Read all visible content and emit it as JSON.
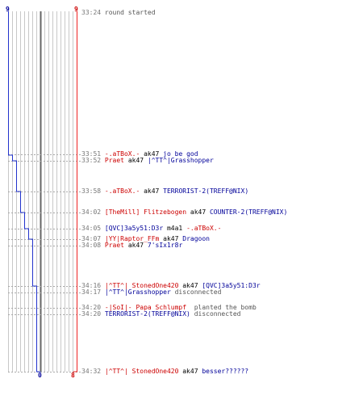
{
  "colors": {
    "red": "#cc0000",
    "blue": "#000099",
    "gray_text": "#777777",
    "msg_text": "#555555",
    "red_line": "#ee2222",
    "blue_line": "#2233cc",
    "grid": "#c8c8c8",
    "center": "#666666",
    "dash": "#aaaaaa"
  },
  "counters": {
    "blue_start": "9",
    "red_start": "9",
    "blue_end": "0",
    "red_end": "8"
  },
  "events": [
    {
      "time": "33:24",
      "parts": [
        {
          "t": "round started",
          "c": "gray"
        }
      ]
    },
    {
      "time": "33:51",
      "parts": [
        {
          "t": "-.aTBoX.-",
          "c": "red"
        },
        {
          "t": " ak47 ",
          "c": "black"
        },
        {
          "t": "jo be god",
          "c": "blue"
        }
      ]
    },
    {
      "time": "33:52",
      "parts": [
        {
          "t": "Praet",
          "c": "red"
        },
        {
          "t": " ak47 ",
          "c": "black"
        },
        {
          "t": "|^TT^|Grasshopper",
          "c": "blue"
        }
      ]
    },
    {
      "time": "33:58",
      "parts": [
        {
          "t": "-.aTBoX.-",
          "c": "red"
        },
        {
          "t": " ak47 ",
          "c": "black"
        },
        {
          "t": "TERRORIST-2(TREFF@NIX)",
          "c": "blue"
        }
      ]
    },
    {
      "time": "34:02",
      "parts": [
        {
          "t": "[TheMill] Flitzebogen",
          "c": "red"
        },
        {
          "t": " ak47 ",
          "c": "black"
        },
        {
          "t": "COUNTER-2(TREFF@NIX)",
          "c": "blue"
        }
      ]
    },
    {
      "time": "34:05",
      "parts": [
        {
          "t": "[QVC]3a5y51:D3r",
          "c": "blue"
        },
        {
          "t": " m4a1 ",
          "c": "black"
        },
        {
          "t": "-.aTBoX.-",
          "c": "red"
        }
      ]
    },
    {
      "time": "34:07",
      "parts": [
        {
          "t": "|YY|Raptor_FFm",
          "c": "red"
        },
        {
          "t": " ak47 ",
          "c": "black"
        },
        {
          "t": "Dragoon",
          "c": "blue"
        }
      ]
    },
    {
      "time": "34:08",
      "parts": [
        {
          "t": "Praet",
          "c": "red"
        },
        {
          "t": " ak47 ",
          "c": "black"
        },
        {
          "t": "7'sIx1r8r",
          "c": "blue"
        }
      ]
    },
    {
      "time": "34:16",
      "parts": [
        {
          "t": "|^TT^| StonedOne420",
          "c": "red"
        },
        {
          "t": " ak47 ",
          "c": "black"
        },
        {
          "t": "[QVC]3a5y51:D3r",
          "c": "blue"
        }
      ]
    },
    {
      "time": "34:17",
      "parts": [
        {
          "t": "|^TT^|Grasshopper",
          "c": "blue"
        },
        {
          "t": " disconnected",
          "c": "gray"
        }
      ]
    },
    {
      "time": "34:20",
      "parts": [
        {
          "t": "-|SoI|- Papa Schlumpf",
          "c": "red"
        },
        {
          "t": "  planted the bomb",
          "c": "gray"
        }
      ]
    },
    {
      "time": "34:20",
      "parts": [
        {
          "t": "TERRORIST-2(TREFF@NIX)",
          "c": "blue"
        },
        {
          "t": " disconnected",
          "c": "gray"
        }
      ]
    },
    {
      "time": "34:32",
      "parts": [
        {
          "t": "|^TT^| StonedOne420",
          "c": "red"
        },
        {
          "t": " ak47 ",
          "c": "black"
        },
        {
          "t": "besser??????",
          "c": "blue"
        }
      ]
    }
  ]
}
